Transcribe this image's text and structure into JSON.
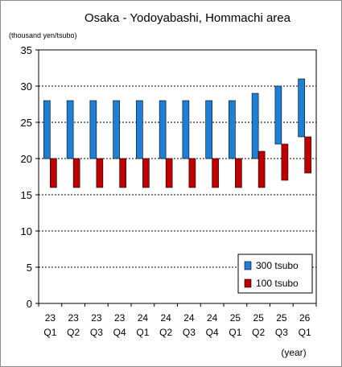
{
  "chart_data": {
    "type": "bar",
    "title": "Osaka - Yodoyabashi, Hommachi area",
    "ylabel": "(thousand yen/tsubo)",
    "xlabel": "(year)",
    "ylim": [
      0,
      35
    ],
    "yticks": [
      0,
      5,
      10,
      15,
      20,
      25,
      30,
      35
    ],
    "grid": true,
    "legend_position": "bottom-right",
    "categories": [
      {
        "year": "23",
        "quarter": "Q1"
      },
      {
        "year": "23",
        "quarter": "Q2"
      },
      {
        "year": "23",
        "quarter": "Q3"
      },
      {
        "year": "23",
        "quarter": "Q4"
      },
      {
        "year": "24",
        "quarter": "Q1"
      },
      {
        "year": "24",
        "quarter": "Q2"
      },
      {
        "year": "24",
        "quarter": "Q3"
      },
      {
        "year": "24",
        "quarter": "Q4"
      },
      {
        "year": "25",
        "quarter": "Q1"
      },
      {
        "year": "25",
        "quarter": "Q2"
      },
      {
        "year": "25",
        "quarter": "Q3"
      },
      {
        "year": "26",
        "quarter": "Q1"
      }
    ],
    "series": [
      {
        "name": "300 tsubo",
        "color": "#1f7fd6",
        "low": [
          20,
          20,
          20,
          20,
          20,
          20,
          20,
          20,
          20,
          20,
          22,
          23
        ],
        "high": [
          28,
          28,
          28,
          28,
          28,
          28,
          28,
          28,
          28,
          29,
          30,
          31
        ]
      },
      {
        "name": "100 tsubo",
        "color": "#c00000",
        "low": [
          16,
          16,
          16,
          16,
          16,
          16,
          16,
          16,
          16,
          16,
          17,
          18
        ],
        "high": [
          20,
          20,
          20,
          20,
          20,
          20,
          20,
          20,
          20,
          21,
          22,
          23
        ]
      }
    ]
  }
}
